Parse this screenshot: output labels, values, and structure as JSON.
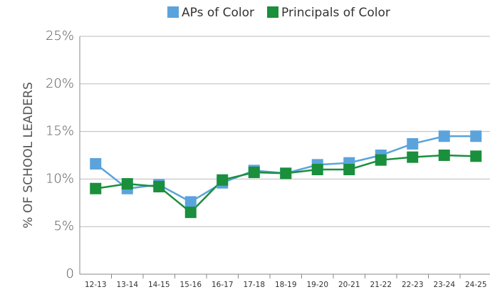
{
  "chart_data": {
    "type": "line",
    "ylabel": "% OF SCHOOL LEADERS",
    "categories": [
      "12-13",
      "13-14",
      "14-15",
      "15-16",
      "16-17",
      "17-18",
      "18-19",
      "19-20",
      "20-21",
      "21-22",
      "22-23",
      "23-24",
      "24-25"
    ],
    "series": [
      {
        "name": "APs of Color",
        "color": "#5ba3dc",
        "values": [
          11.6,
          9.0,
          9.4,
          7.6,
          9.6,
          10.9,
          10.6,
          11.5,
          11.7,
          12.5,
          13.7,
          14.5,
          14.5
        ]
      },
      {
        "name": "Principals of Color",
        "color": "#1a8f3c",
        "values": [
          9.0,
          9.5,
          9.2,
          6.5,
          9.9,
          10.7,
          10.6,
          11.0,
          11.0,
          12.0,
          12.3,
          12.5,
          12.4
        ]
      }
    ],
    "ylim": [
      0,
      25
    ],
    "yticks": [
      0,
      {
        "value": 5,
        "label": "5%"
      },
      {
        "value": 10,
        "label": "10%"
      },
      {
        "value": 15,
        "label": "15%"
      },
      {
        "value": 20,
        "label": "20%"
      },
      {
        "value": 25,
        "label": "25%"
      }
    ],
    "grid": true,
    "legend": "top"
  }
}
